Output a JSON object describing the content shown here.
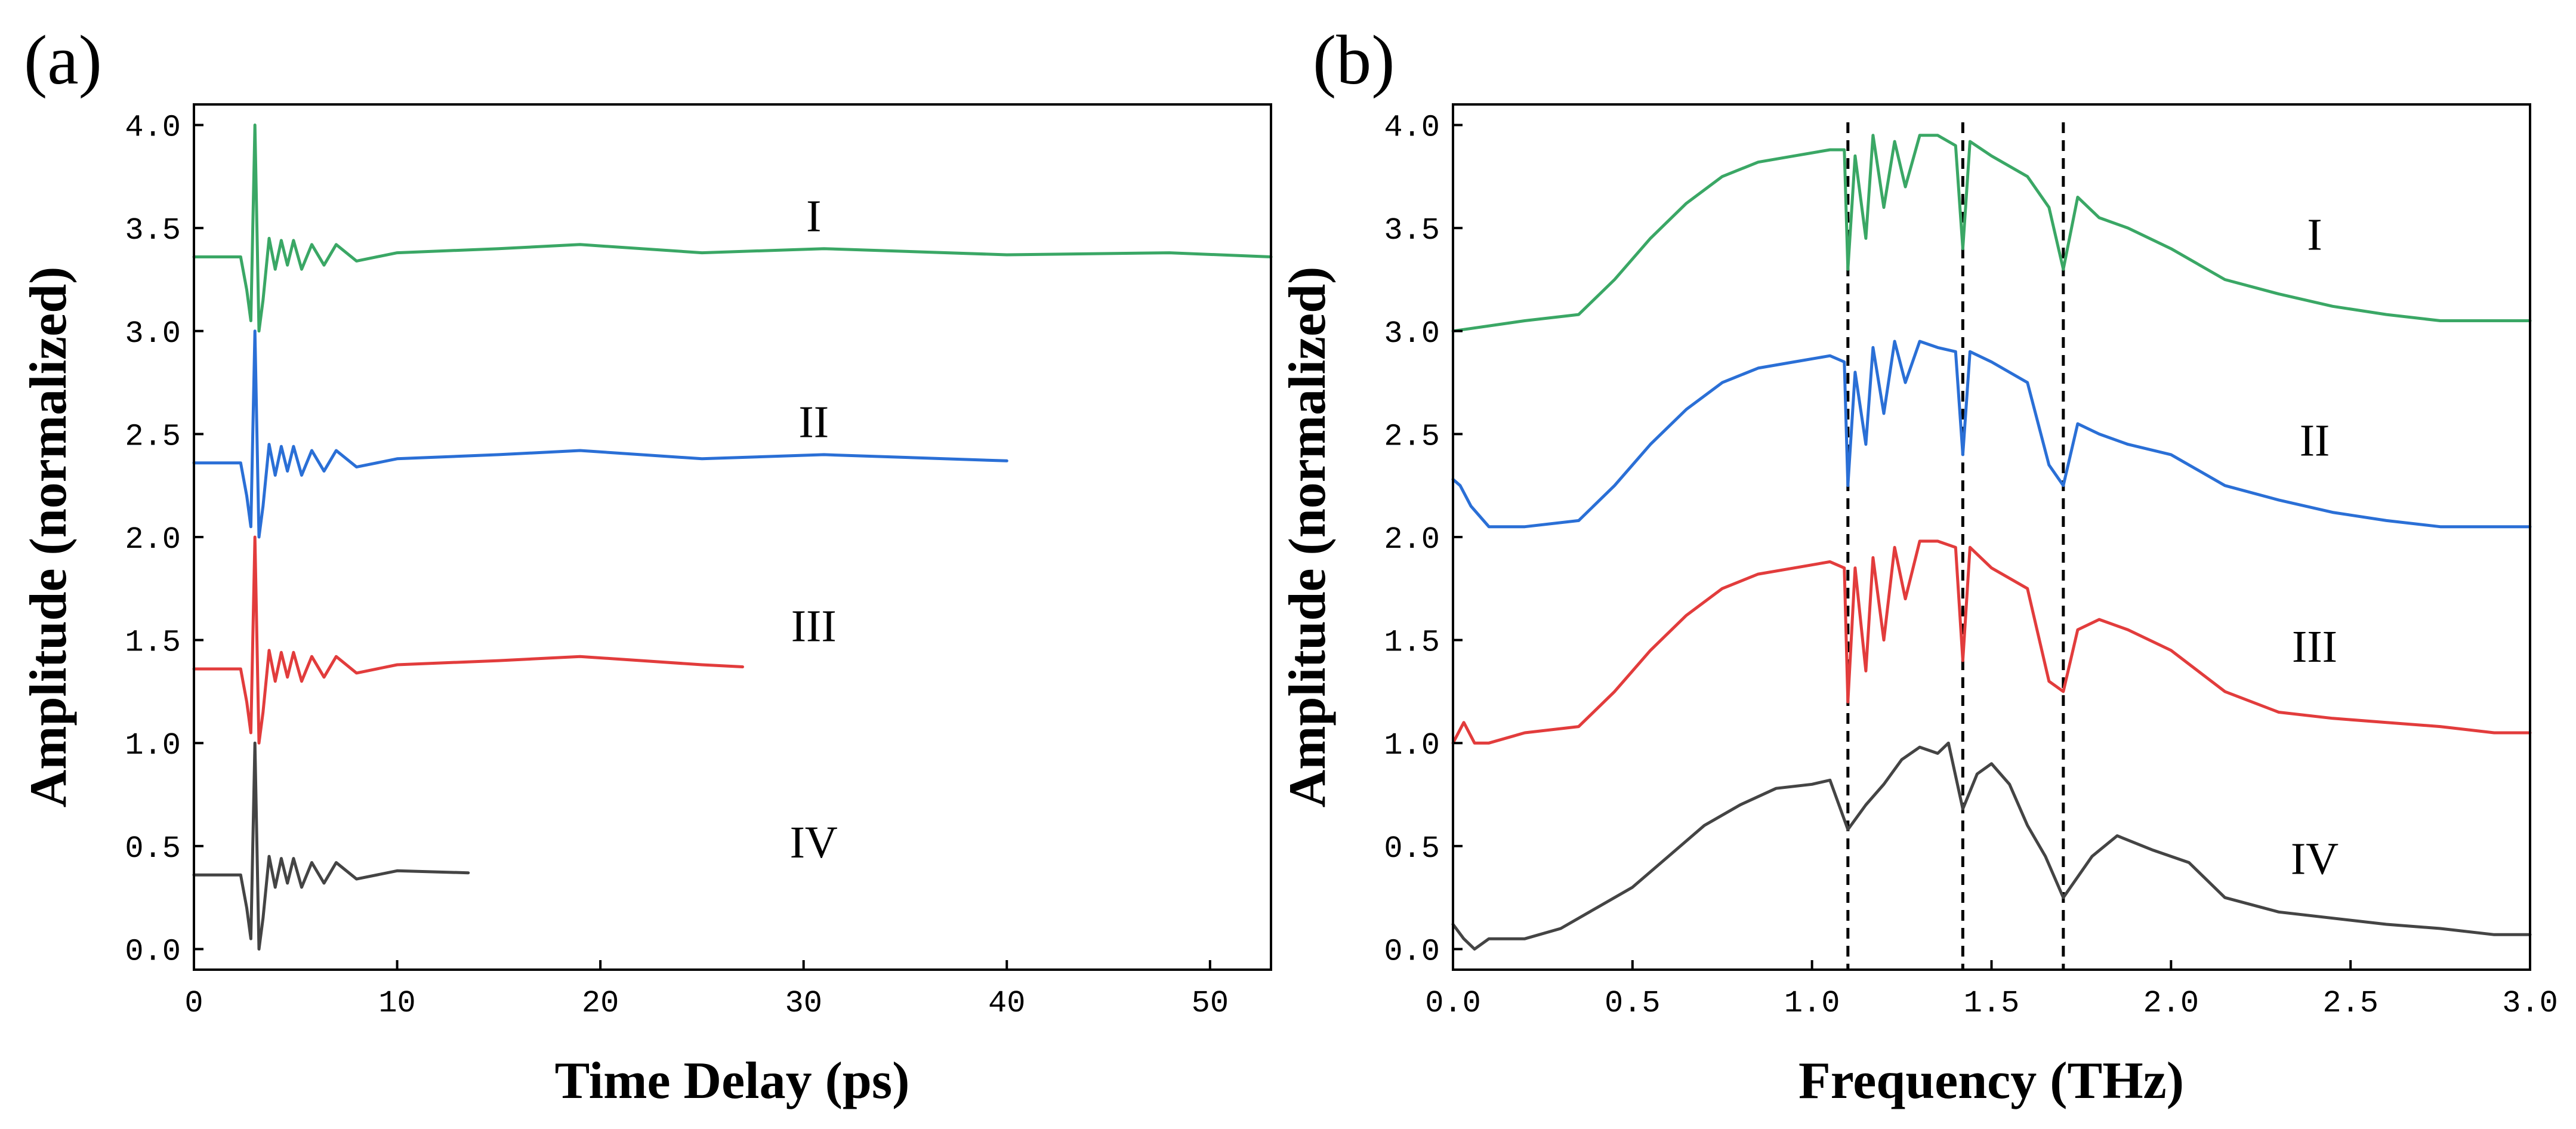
{
  "colors": {
    "I": "#3aa765",
    "II": "#2a6fd6",
    "III": "#e23c3c",
    "IV": "#444444"
  },
  "chart_data": [
    {
      "panel_label": "(a)",
      "type": "line",
      "title": "",
      "xlabel": "Time Delay (ps)",
      "ylabel": "Amplitude (normalized)",
      "xlim": [
        0,
        53
      ],
      "ylim": [
        -0.1,
        4.1
      ],
      "xticks": [
        0,
        10,
        20,
        30,
        40,
        50
      ],
      "xtick_labels": [
        "0",
        "10",
        "20",
        "30",
        "40",
        "50"
      ],
      "yticks": [
        0,
        0.5,
        1,
        1.5,
        2,
        2.5,
        3,
        3.5,
        4
      ],
      "ytick_labels": [
        "0.0",
        "0.5",
        "1.0",
        "1.5",
        "2.0",
        "2.5",
        "3.0",
        "3.5",
        "4.0"
      ],
      "series": [
        {
          "name": "I",
          "offset": 3,
          "baseline": 0.36,
          "pulse_t": 3.0,
          "x_end": 53,
          "label_at": [
            30.5,
            3.56
          ],
          "x": [
            0,
            1.5,
            2.3,
            2.6,
            2.8,
            3.0,
            3.2,
            3.4,
            3.7,
            4.0,
            4.3,
            4.6,
            4.9,
            5.3,
            5.8,
            6.4,
            7.0,
            8.0,
            10.0,
            15.0,
            19.0,
            25.0,
            31.0,
            40.0,
            48.0,
            53.0
          ],
          "y": [
            3.36,
            3.36,
            3.36,
            3.2,
            3.05,
            4.0,
            3.0,
            3.15,
            3.45,
            3.3,
            3.44,
            3.32,
            3.44,
            3.3,
            3.42,
            3.32,
            3.42,
            3.34,
            3.38,
            3.4,
            3.42,
            3.38,
            3.4,
            3.37,
            3.38,
            3.36
          ]
        },
        {
          "name": "II",
          "offset": 2,
          "baseline": 0.36,
          "pulse_t": 3.0,
          "x_end": 40,
          "label_at": [
            30.5,
            2.56
          ],
          "x": [
            0,
            1.5,
            2.3,
            2.6,
            2.8,
            3.0,
            3.2,
            3.4,
            3.7,
            4.0,
            4.3,
            4.6,
            4.9,
            5.3,
            5.8,
            6.4,
            7.0,
            8.0,
            10.0,
            15.0,
            19.0,
            25.0,
            31.0,
            40.0
          ],
          "y": [
            2.36,
            2.36,
            2.36,
            2.2,
            2.05,
            3.0,
            2.0,
            2.15,
            2.45,
            2.3,
            2.44,
            2.32,
            2.44,
            2.3,
            2.42,
            2.32,
            2.42,
            2.34,
            2.38,
            2.4,
            2.42,
            2.38,
            2.4,
            2.37
          ]
        },
        {
          "name": "III",
          "offset": 1,
          "baseline": 0.36,
          "pulse_t": 3.0,
          "x_end": 27,
          "label_at": [
            30.5,
            1.57
          ],
          "x": [
            0,
            1.5,
            2.3,
            2.6,
            2.8,
            3.0,
            3.2,
            3.4,
            3.7,
            4.0,
            4.3,
            4.6,
            4.9,
            5.3,
            5.8,
            6.4,
            7.0,
            8.0,
            10.0,
            15.0,
            19.0,
            25.0,
            27.0
          ],
          "y": [
            1.36,
            1.36,
            1.36,
            1.2,
            1.05,
            2.0,
            1.0,
            1.15,
            1.45,
            1.3,
            1.44,
            1.32,
            1.44,
            1.3,
            1.42,
            1.32,
            1.42,
            1.34,
            1.38,
            1.4,
            1.42,
            1.38,
            1.37
          ]
        },
        {
          "name": "IV",
          "offset": 0,
          "baseline": 0.36,
          "pulse_t": 3.0,
          "x_end": 13.5,
          "label_at": [
            30.5,
            0.52
          ],
          "x": [
            0,
            1.5,
            2.3,
            2.6,
            2.8,
            3.0,
            3.2,
            3.4,
            3.7,
            4.0,
            4.3,
            4.6,
            4.9,
            5.3,
            5.8,
            6.4,
            7.0,
            8.0,
            10.0,
            13.5
          ],
          "y": [
            0.36,
            0.36,
            0.36,
            0.2,
            0.05,
            1.0,
            0.0,
            0.15,
            0.45,
            0.3,
            0.44,
            0.32,
            0.44,
            0.3,
            0.42,
            0.32,
            0.42,
            0.34,
            0.38,
            0.37
          ]
        }
      ]
    },
    {
      "panel_label": "(b)",
      "type": "line",
      "title": "",
      "xlabel": "Frequency (THz)",
      "ylabel": "Amplitude (normalized)",
      "xlim": [
        0,
        3.0
      ],
      "ylim": [
        -0.1,
        4.1
      ],
      "xticks": [
        0,
        0.5,
        1,
        1.5,
        2,
        2.5,
        3
      ],
      "xtick_labels": [
        "0.0",
        "0.5",
        "1.0",
        "1.5",
        "2.0",
        "2.5",
        "3.0"
      ],
      "yticks": [
        0,
        0.5,
        1,
        1.5,
        2,
        2.5,
        3,
        3.5,
        4
      ],
      "ytick_labels": [
        "0.0",
        "0.5",
        "1.0",
        "1.5",
        "2.0",
        "2.5",
        "3.0",
        "3.5",
        "4.0"
      ],
      "vertical_markers": [
        1.1,
        1.42,
        1.7
      ],
      "series": [
        {
          "name": "I",
          "label_at": [
            2.4,
            3.47
          ],
          "x": [
            0.0,
            0.2,
            0.35,
            0.45,
            0.55,
            0.65,
            0.75,
            0.85,
            0.95,
            1.05,
            1.09,
            1.1,
            1.12,
            1.15,
            1.17,
            1.2,
            1.23,
            1.26,
            1.3,
            1.35,
            1.4,
            1.42,
            1.44,
            1.5,
            1.6,
            1.66,
            1.7,
            1.74,
            1.8,
            1.88,
            2.0,
            2.15,
            2.3,
            2.45,
            2.6,
            2.75,
            2.9,
            3.0
          ],
          "y": [
            3.0,
            3.05,
            3.08,
            3.25,
            3.45,
            3.62,
            3.75,
            3.82,
            3.85,
            3.88,
            3.88,
            3.3,
            3.85,
            3.45,
            3.95,
            3.6,
            3.92,
            3.7,
            3.95,
            3.95,
            3.9,
            3.4,
            3.92,
            3.85,
            3.75,
            3.6,
            3.3,
            3.65,
            3.55,
            3.5,
            3.4,
            3.25,
            3.18,
            3.12,
            3.08,
            3.05,
            3.05,
            3.05
          ]
        },
        {
          "name": "II",
          "label_at": [
            2.4,
            2.47
          ],
          "x": [
            0.0,
            0.02,
            0.05,
            0.1,
            0.2,
            0.35,
            0.45,
            0.55,
            0.65,
            0.75,
            0.85,
            0.95,
            1.05,
            1.09,
            1.1,
            1.12,
            1.15,
            1.17,
            1.2,
            1.23,
            1.26,
            1.3,
            1.35,
            1.4,
            1.42,
            1.44,
            1.5,
            1.6,
            1.66,
            1.7,
            1.74,
            1.8,
            1.88,
            2.0,
            2.15,
            2.3,
            2.45,
            2.6,
            2.75,
            2.9,
            3.0
          ],
          "y": [
            2.28,
            2.25,
            2.15,
            2.05,
            2.05,
            2.08,
            2.25,
            2.45,
            2.62,
            2.75,
            2.82,
            2.85,
            2.88,
            2.85,
            2.25,
            2.8,
            2.45,
            2.92,
            2.6,
            2.95,
            2.75,
            2.95,
            2.92,
            2.9,
            2.4,
            2.9,
            2.85,
            2.75,
            2.35,
            2.25,
            2.55,
            2.5,
            2.45,
            2.4,
            2.25,
            2.18,
            2.12,
            2.08,
            2.05,
            2.05,
            2.05
          ]
        },
        {
          "name": "III",
          "label_at": [
            2.4,
            1.47
          ],
          "x": [
            0.0,
            0.03,
            0.06,
            0.1,
            0.2,
            0.35,
            0.45,
            0.55,
            0.65,
            0.75,
            0.85,
            0.95,
            1.05,
            1.09,
            1.1,
            1.12,
            1.15,
            1.17,
            1.2,
            1.23,
            1.26,
            1.3,
            1.35,
            1.4,
            1.42,
            1.44,
            1.5,
            1.6,
            1.66,
            1.7,
            1.74,
            1.8,
            1.88,
            2.0,
            2.15,
            2.3,
            2.45,
            2.6,
            2.75,
            2.9,
            3.0
          ],
          "y": [
            1.0,
            1.1,
            1.0,
            1.0,
            1.05,
            1.08,
            1.25,
            1.45,
            1.62,
            1.75,
            1.82,
            1.85,
            1.88,
            1.85,
            1.2,
            1.85,
            1.35,
            1.9,
            1.5,
            1.95,
            1.7,
            1.98,
            1.98,
            1.95,
            1.4,
            1.95,
            1.85,
            1.75,
            1.3,
            1.25,
            1.55,
            1.6,
            1.55,
            1.45,
            1.25,
            1.15,
            1.12,
            1.1,
            1.08,
            1.05,
            1.05
          ]
        },
        {
          "name": "IV",
          "label_at": [
            2.4,
            0.44
          ],
          "x": [
            0.0,
            0.03,
            0.06,
            0.1,
            0.2,
            0.3,
            0.4,
            0.5,
            0.6,
            0.7,
            0.8,
            0.9,
            1.0,
            1.05,
            1.1,
            1.15,
            1.2,
            1.25,
            1.3,
            1.35,
            1.38,
            1.42,
            1.46,
            1.5,
            1.55,
            1.6,
            1.65,
            1.7,
            1.78,
            1.85,
            1.95,
            2.05,
            2.15,
            2.3,
            2.45,
            2.6,
            2.75,
            2.9,
            3.0
          ],
          "y": [
            0.12,
            0.05,
            0.0,
            0.05,
            0.05,
            0.1,
            0.2,
            0.3,
            0.45,
            0.6,
            0.7,
            0.78,
            0.8,
            0.82,
            0.58,
            0.7,
            0.8,
            0.92,
            0.98,
            0.95,
            1.0,
            0.68,
            0.85,
            0.9,
            0.8,
            0.6,
            0.45,
            0.25,
            0.45,
            0.55,
            0.48,
            0.42,
            0.25,
            0.18,
            0.15,
            0.12,
            0.1,
            0.07,
            0.07
          ]
        }
      ]
    }
  ]
}
